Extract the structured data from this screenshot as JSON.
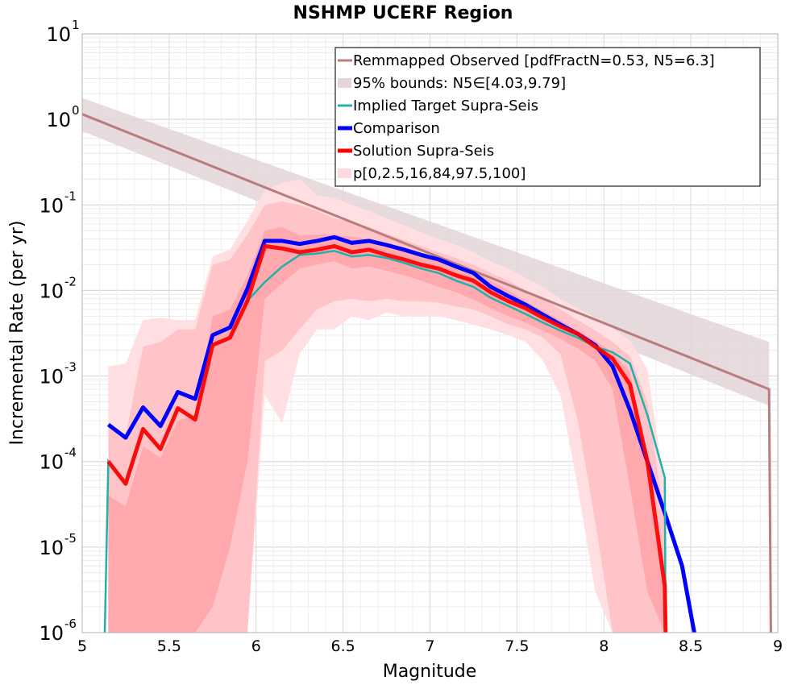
{
  "chart_data": {
    "type": "line",
    "title": "NSHMP UCERF Region",
    "xlabel": "Magnitude",
    "ylabel": "Incremental Rate (per yr)",
    "xlim": [
      5,
      9
    ],
    "ylim": [
      1e-06,
      10
    ],
    "yscale": "log",
    "grid": true,
    "legend_position": "top-right",
    "x_ticks": [
      "5",
      "5.5",
      "6",
      "6.5",
      "7",
      "7.5",
      "8",
      "8.5",
      "9"
    ],
    "y_ticks": [
      {
        "base": "10",
        "exp": "-6"
      },
      {
        "base": "10",
        "exp": "-5"
      },
      {
        "base": "10",
        "exp": "-4"
      },
      {
        "base": "10",
        "exp": "-3"
      },
      {
        "base": "10",
        "exp": "-2"
      },
      {
        "base": "10",
        "exp": "-1"
      },
      {
        "base": "10",
        "exp": "0"
      },
      {
        "base": "10",
        "exp": "1"
      }
    ],
    "legend": [
      {
        "label": "Remmapped Observed [pdfFractN=0.53, N5=6.3]",
        "color": "#b87d7d",
        "style": "line"
      },
      {
        "label": "95% bounds: N5∈[4.03,9.79]",
        "color": "#e3d5d8",
        "style": "fill"
      },
      {
        "label": "Implied Target Supra-Seis",
        "color": "#20b2aa",
        "style": "line"
      },
      {
        "label": "Comparison",
        "color": "#0000ff",
        "style": "thick-line"
      },
      {
        "label": "Solution Supra-Seis",
        "color": "#ff0000",
        "style": "thick-line"
      },
      {
        "label": "p[0,2.5,16,84,97.5,100]",
        "color": "#ffd9dd",
        "style": "fill"
      }
    ],
    "series": [
      {
        "name": "Remmapped Observed [pdfFractN=0.53, N5=6.3]",
        "color": "#b87d7d",
        "x": [
          5.0,
          8.95,
          8.96
        ],
        "y": [
          1.15,
          0.0007,
          1e-06
        ]
      },
      {
        "name": "95% bounds: N5∈[4.03,9.79]",
        "kind": "band",
        "color": "#e3d5d8",
        "x": [
          5.0,
          8.95
        ],
        "lower": [
          0.73,
          0.00045
        ],
        "upper": [
          1.78,
          0.0025
        ]
      },
      {
        "name": "Implied Target Supra-Seis",
        "color": "#20b2aa",
        "x": [
          5.13,
          5.15,
          5.25,
          5.35,
          5.45,
          5.55,
          5.65,
          5.75,
          5.85,
          5.95,
          6.05,
          6.15,
          6.25,
          6.35,
          6.45,
          6.55,
          6.65,
          6.75,
          6.85,
          6.95,
          7.05,
          7.15,
          7.25,
          7.35,
          7.45,
          7.55,
          7.65,
          7.75,
          7.85,
          7.95,
          8.05,
          8.15,
          8.25,
          8.35,
          8.355
        ],
        "y": [
          1e-06,
          0.0001,
          5.5e-05,
          0.00024,
          0.00014,
          0.00042,
          0.00031,
          0.0023,
          0.0028,
          0.0076,
          0.0125,
          0.019,
          0.026,
          0.027,
          0.029,
          0.025,
          0.026,
          0.024,
          0.021,
          0.018,
          0.016,
          0.013,
          0.011,
          0.0082,
          0.0066,
          0.0053,
          0.0042,
          0.0034,
          0.0028,
          0.0022,
          0.0019,
          0.0014,
          0.00035,
          6.5e-05,
          1e-06
        ]
      },
      {
        "name": "Comparison",
        "color": "#0000ff",
        "x": [
          5.15,
          5.25,
          5.35,
          5.45,
          5.55,
          5.65,
          5.75,
          5.85,
          5.95,
          6.05,
          6.15,
          6.25,
          6.35,
          6.45,
          6.55,
          6.65,
          6.75,
          6.85,
          6.95,
          7.05,
          7.15,
          7.25,
          7.35,
          7.45,
          7.55,
          7.65,
          7.75,
          7.85,
          7.95,
          8.05,
          8.15,
          8.25,
          8.35,
          8.45,
          8.52
        ],
        "y": [
          0.00027,
          0.00019,
          0.00043,
          0.00026,
          0.00065,
          0.00054,
          0.003,
          0.0037,
          0.0105,
          0.038,
          0.038,
          0.035,
          0.038,
          0.042,
          0.036,
          0.038,
          0.034,
          0.03,
          0.026,
          0.023,
          0.019,
          0.016,
          0.011,
          0.0086,
          0.0068,
          0.0052,
          0.004,
          0.0031,
          0.0023,
          0.0013,
          0.0004,
          0.0001,
          2.5e-05,
          6e-06,
          1e-06
        ]
      },
      {
        "name": "Solution Supra-Seis",
        "color": "#ff0000",
        "x": [
          5.15,
          5.25,
          5.35,
          5.45,
          5.55,
          5.65,
          5.75,
          5.85,
          5.95,
          6.05,
          6.15,
          6.25,
          6.35,
          6.45,
          6.55,
          6.65,
          6.75,
          6.85,
          6.95,
          7.05,
          7.15,
          7.25,
          7.35,
          7.45,
          7.55,
          7.65,
          7.75,
          7.85,
          7.95,
          8.05,
          8.15,
          8.25,
          8.35,
          8.355
        ],
        "y": [
          0.0001,
          5.5e-05,
          0.00024,
          0.00014,
          0.00042,
          0.00031,
          0.0023,
          0.0028,
          0.0076,
          0.033,
          0.031,
          0.028,
          0.03,
          0.033,
          0.028,
          0.03,
          0.026,
          0.023,
          0.02,
          0.018,
          0.015,
          0.013,
          0.0095,
          0.0075,
          0.0062,
          0.0048,
          0.0038,
          0.0031,
          0.0022,
          0.0016,
          0.0008,
          0.0001,
          3.5e-06,
          1e-06
        ]
      },
      {
        "name": "p[0,2.5,16,84,97.5,100]",
        "kind": "percentile-bands",
        "colors": [
          "#ffdfe2",
          "#ffc4c8",
          "#ffa9ae"
        ],
        "x": [
          5.15,
          5.25,
          5.35,
          5.45,
          5.55,
          5.65,
          5.75,
          5.85,
          5.95,
          6.05,
          6.15,
          6.25,
          6.35,
          6.45,
          6.55,
          6.65,
          6.75,
          6.85,
          6.95,
          7.05,
          7.15,
          7.25,
          7.35,
          7.45,
          7.55,
          7.65,
          7.75,
          7.85,
          7.95,
          8.05,
          8.15,
          8.25,
          8.35
        ],
        "p0": [
          1e-06,
          1e-06,
          1e-06,
          1e-06,
          1e-06,
          1e-06,
          1e-06,
          1e-06,
          1e-06,
          0.0006,
          0.00028,
          0.0018,
          0.0035,
          0.0035,
          0.005,
          0.0045,
          0.0055,
          0.005,
          0.005,
          0.005,
          0.0045,
          0.004,
          0.0035,
          0.003,
          0.0025,
          0.0015,
          0.0006,
          5e-05,
          3e-06,
          1e-06,
          1e-06,
          1e-06,
          1e-06
        ],
        "p2_5": [
          1e-06,
          1e-06,
          1e-06,
          1e-06,
          1e-06,
          1e-06,
          1e-06,
          1e-06,
          1e-06,
          0.0015,
          0.002,
          0.0035,
          0.006,
          0.0075,
          0.008,
          0.0075,
          0.008,
          0.0075,
          0.0075,
          0.0072,
          0.0065,
          0.006,
          0.005,
          0.004,
          0.0035,
          0.0028,
          0.0018,
          0.0003,
          2e-05,
          1e-06,
          1e-06,
          1e-06,
          1e-06
        ],
        "p16": [
          1e-06,
          1e-06,
          1e-06,
          1e-06,
          1e-06,
          1e-06,
          2e-06,
          1e-05,
          0.0001,
          0.008,
          0.012,
          0.018,
          0.02,
          0.022,
          0.018,
          0.019,
          0.017,
          0.015,
          0.013,
          0.011,
          0.0095,
          0.0078,
          0.0062,
          0.005,
          0.0042,
          0.0034,
          0.0027,
          0.0021,
          0.0015,
          0.0007,
          5e-05,
          3e-06,
          1e-06
        ],
        "p84": [
          4e-05,
          3e-05,
          0.00015,
          0.00011,
          0.0003,
          0.00035,
          0.005,
          0.006,
          0.015,
          0.05,
          0.055,
          0.044,
          0.045,
          0.045,
          0.042,
          0.04,
          0.036,
          0.031,
          0.027,
          0.024,
          0.021,
          0.017,
          0.013,
          0.01,
          0.0075,
          0.0058,
          0.0045,
          0.0034,
          0.0026,
          0.0019,
          0.0011,
          0.0001,
          5e-06
        ],
        "p97_5": [
          0.00025,
          0.0002,
          0.0022,
          0.0025,
          0.0035,
          0.0035,
          0.02,
          0.023,
          0.045,
          0.1,
          0.11,
          0.1,
          0.085,
          0.07,
          0.062,
          0.055,
          0.046,
          0.039,
          0.033,
          0.028,
          0.024,
          0.02,
          0.016,
          0.013,
          0.01,
          0.008,
          0.006,
          0.0045,
          0.0034,
          0.0025,
          0.0017,
          0.0005,
          2e-05
        ],
        "p100": [
          0.0013,
          0.0014,
          0.0045,
          0.0048,
          0.0045,
          0.0045,
          0.025,
          0.03,
          0.065,
          0.15,
          0.18,
          0.2,
          0.13,
          0.12,
          0.1,
          0.085,
          0.07,
          0.058,
          0.048,
          0.04,
          0.034,
          0.028,
          0.022,
          0.018,
          0.014,
          0.011,
          0.008,
          0.0062,
          0.0048,
          0.0036,
          0.0026,
          0.0012,
          5e-05
        ]
      }
    ]
  }
}
